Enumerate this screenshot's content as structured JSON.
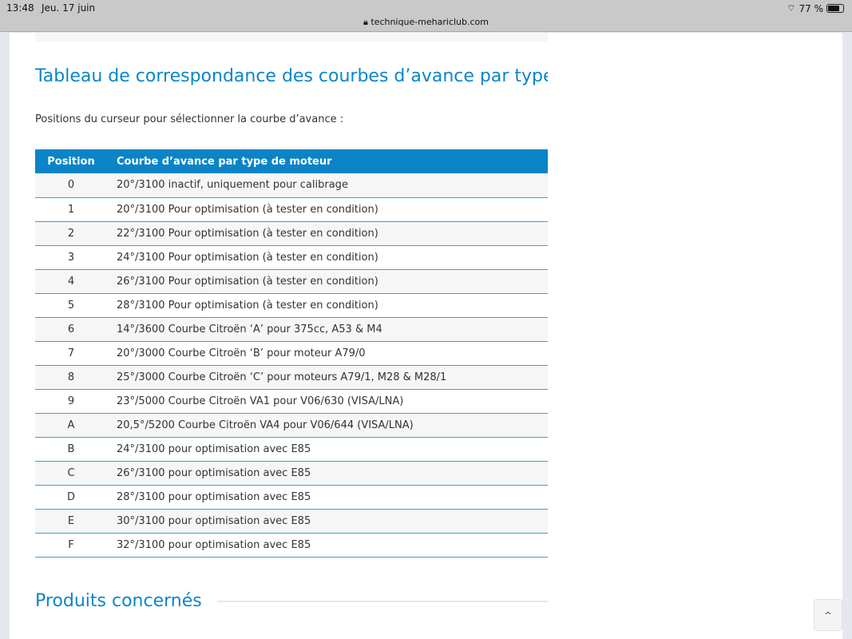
{
  "status_bar": {
    "time": "13:48",
    "date": "Jeu. 17 juin",
    "url": "technique-mehariclub.com",
    "battery": "77 %",
    "battery_level": 0.77
  },
  "article": {
    "title": "Tableau de correspondance des courbes d’avance par type",
    "intro": "Positions du curseur pour sélectionner la courbe d’avance :",
    "table": {
      "headers": [
        "Position",
        "Courbe d’avance par type de moteur"
      ],
      "rows": [
        [
          "0",
          "20°/3100 inactif, uniquement pour calibrage"
        ],
        [
          "1",
          "20°/3100 Pour optimisation (à tester en condition)"
        ],
        [
          "2",
          "22°/3100 Pour optimisation (à tester en condition)"
        ],
        [
          "3",
          "24°/3100 Pour optimisation (à tester en condition)"
        ],
        [
          "4",
          "26°/3100 Pour optimisation (à tester en condition)"
        ],
        [
          "5",
          "28°/3100 Pour optimisation (à tester en condition)"
        ],
        [
          "6",
          "14°/3600 Courbe Citroën ‘A’ pour 375cc, A53 & M4"
        ],
        [
          "7",
          "20°/3000 Courbe Citroën ‘B’ pour moteur A79/0"
        ],
        [
          "8",
          "25°/3000 Courbe Citroën ‘C’ pour moteurs A79/1, M28 & M28/1"
        ],
        [
          "9",
          "23°/5000 Courbe Citroën VA1 pour V06/630 (VISA/LNA)"
        ],
        [
          "A",
          "20,5°/5200 Courbe Citroën VA4 pour V06/644 (VISA/LNA)"
        ],
        [
          "B",
          "24°/3100 pour optimisation avec E85"
        ],
        [
          "C",
          "26°/3100 pour optimisation avec E85"
        ],
        [
          "D",
          "28°/3100 pour optimisation avec E85"
        ],
        [
          "E",
          "30°/3100 pour optimisation avec E85"
        ],
        [
          "F",
          "32°/3100 pour optimisation avec E85"
        ]
      ]
    },
    "products_heading": "Produits concernés"
  },
  "scroll_top": {
    "icon": "chevron-up-icon",
    "label": "^"
  },
  "colors": {
    "accent": "#0a84c6",
    "row_border": "#3d9fd8"
  }
}
